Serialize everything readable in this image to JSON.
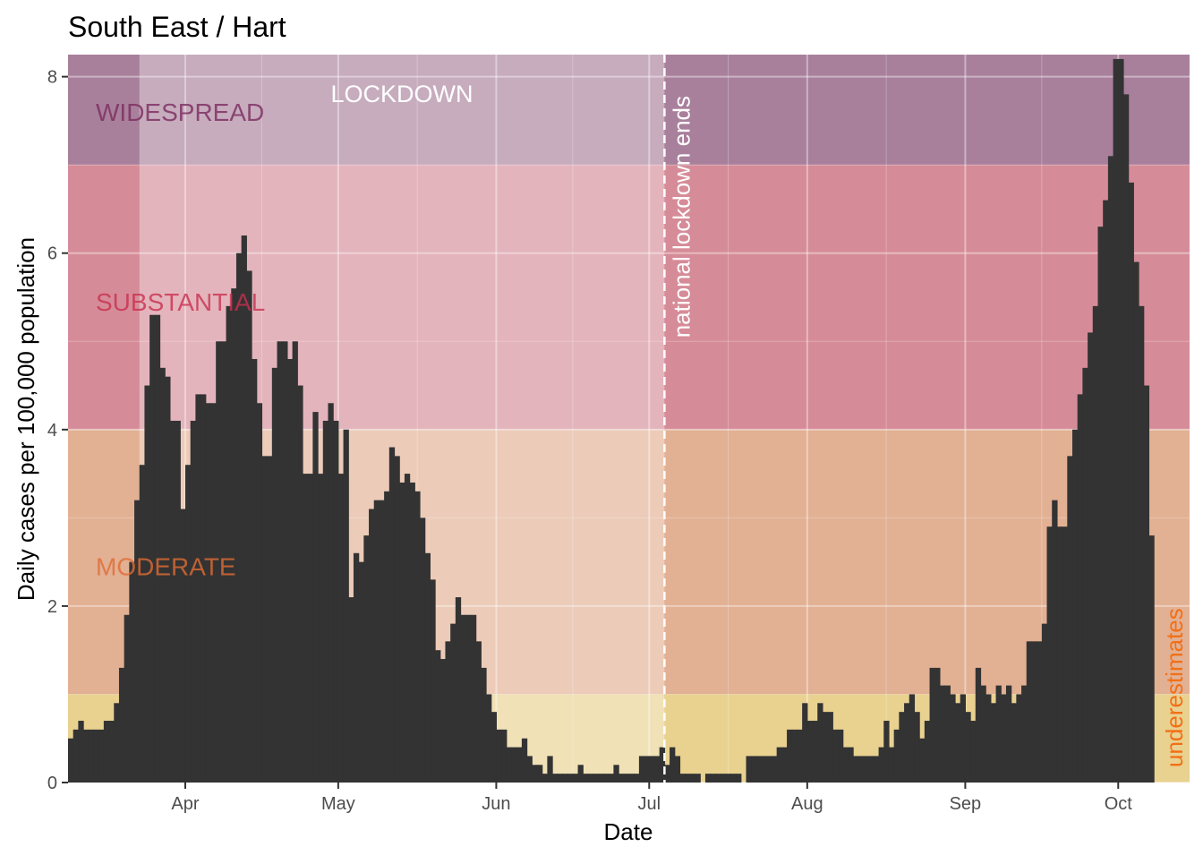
{
  "chart_data": {
    "type": "bar",
    "title": "South East / Hart",
    "xlabel": "Date",
    "ylabel": "Daily cases per 100,000 population",
    "ylim": [
      0,
      8.25
    ],
    "xlim": [
      "2020-03-09",
      "2020-10-15"
    ],
    "grid": true,
    "x_ticks": [
      {
        "label": "Apr",
        "date": "2020-04-01"
      },
      {
        "label": "May",
        "date": "2020-05-01"
      },
      {
        "label": "Jun",
        "date": "2020-06-01"
      },
      {
        "label": "Jul",
        "date": "2020-07-01"
      },
      {
        "label": "Aug",
        "date": "2020-08-01"
      },
      {
        "label": "Sep",
        "date": "2020-09-01"
      },
      {
        "label": "Oct",
        "date": "2020-10-01"
      }
    ],
    "y_ticks": [
      0,
      2,
      4,
      6,
      8
    ],
    "threshold_bands": [
      {
        "name": "WIDESPREAD",
        "from": 7,
        "to": 8.25,
        "color": "#a9809c"
      },
      {
        "name": "SUBSTANTIAL",
        "from": 4,
        "to": 7,
        "color": "#d68c98"
      },
      {
        "name": "MODERATE",
        "from": 1,
        "to": 4,
        "color": "#e2b093"
      },
      {
        "name": "",
        "from": 0,
        "to": 1,
        "color": "#e9d190"
      }
    ],
    "band_labels": [
      {
        "text": "WIDESPREAD",
        "value": 7.6,
        "color": "#7a2a5e"
      },
      {
        "text": "SUBSTANTIAL",
        "value": 5.45,
        "color": "#c8304f"
      },
      {
        "text": "MODERATE",
        "value": 2.45,
        "color": "#e06b33"
      }
    ],
    "lockdown": {
      "label": "LOCKDOWN",
      "start": "2020-03-23",
      "end": "2020-07-04"
    },
    "annotation_line": {
      "label": "national lockdown ends",
      "date": "2020-07-04"
    },
    "underestimates_label": "underestimates",
    "start_date": "2020-03-09",
    "bar_color": "#333333",
    "values": [
      0.5,
      0.6,
      0.7,
      0.6,
      0.6,
      0.6,
      0.6,
      0.7,
      0.7,
      0.9,
      1.3,
      1.9,
      2.5,
      3.2,
      3.6,
      4.5,
      5.3,
      5.3,
      4.7,
      4.6,
      4.1,
      4.1,
      3.1,
      3.6,
      4.1,
      4.4,
      4.4,
      4.3,
      4.3,
      5.0,
      5.0,
      5.4,
      5.6,
      6.0,
      6.2,
      5.8,
      4.8,
      4.3,
      3.7,
      3.7,
      4.7,
      5.0,
      5.0,
      4.8,
      5.0,
      4.5,
      3.5,
      3.5,
      4.2,
      3.5,
      4.1,
      4.3,
      4.1,
      3.5,
      4.0,
      2.1,
      2.6,
      2.5,
      2.8,
      3.1,
      3.2,
      3.2,
      3.3,
      3.8,
      3.7,
      3.4,
      3.5,
      3.4,
      3.3,
      3.0,
      2.6,
      2.3,
      1.5,
      1.4,
      1.6,
      1.8,
      2.1,
      1.9,
      1.9,
      1.9,
      1.6,
      1.3,
      1.0,
      0.8,
      0.6,
      0.6,
      0.4,
      0.4,
      0.4,
      0.5,
      0.3,
      0.2,
      0.2,
      0.1,
      0.3,
      0.1,
      0.1,
      0.1,
      0.1,
      0.1,
      0.2,
      0.1,
      0.1,
      0.1,
      0.1,
      0.1,
      0.1,
      0.2,
      0.1,
      0.1,
      0.1,
      0.1,
      0.3,
      0.3,
      0.3,
      0.3,
      0.4,
      0.2,
      0.4,
      0.3,
      0.1,
      0.1,
      0.1,
      0.1,
      0.0,
      0.1,
      0.1,
      0.1,
      0.1,
      0.1,
      0.1,
      0.1,
      0.0,
      0.3,
      0.3,
      0.3,
      0.3,
      0.3,
      0.3,
      0.4,
      0.4,
      0.6,
      0.6,
      0.6,
      0.9,
      0.7,
      0.7,
      0.9,
      0.8,
      0.8,
      0.6,
      0.6,
      0.4,
      0.4,
      0.3,
      0.3,
      0.3,
      0.3,
      0.3,
      0.4,
      0.7,
      0.4,
      0.6,
      0.8,
      0.9,
      1.0,
      0.8,
      0.5,
      0.7,
      1.3,
      1.3,
      1.1,
      1.1,
      1.0,
      0.9,
      1.0,
      0.8,
      0.7,
      1.3,
      1.1,
      1.0,
      0.9,
      1.1,
      1.0,
      1.1,
      0.9,
      1.0,
      1.1,
      1.6,
      1.6,
      1.6,
      1.8,
      2.9,
      3.2,
      2.9,
      2.9,
      3.7,
      4.0,
      4.4,
      4.7,
      5.1,
      5.4,
      6.3,
      6.6,
      7.1,
      8.2,
      8.2,
      7.8,
      6.8,
      5.9,
      5.4,
      4.5,
      2.8
    ]
  }
}
